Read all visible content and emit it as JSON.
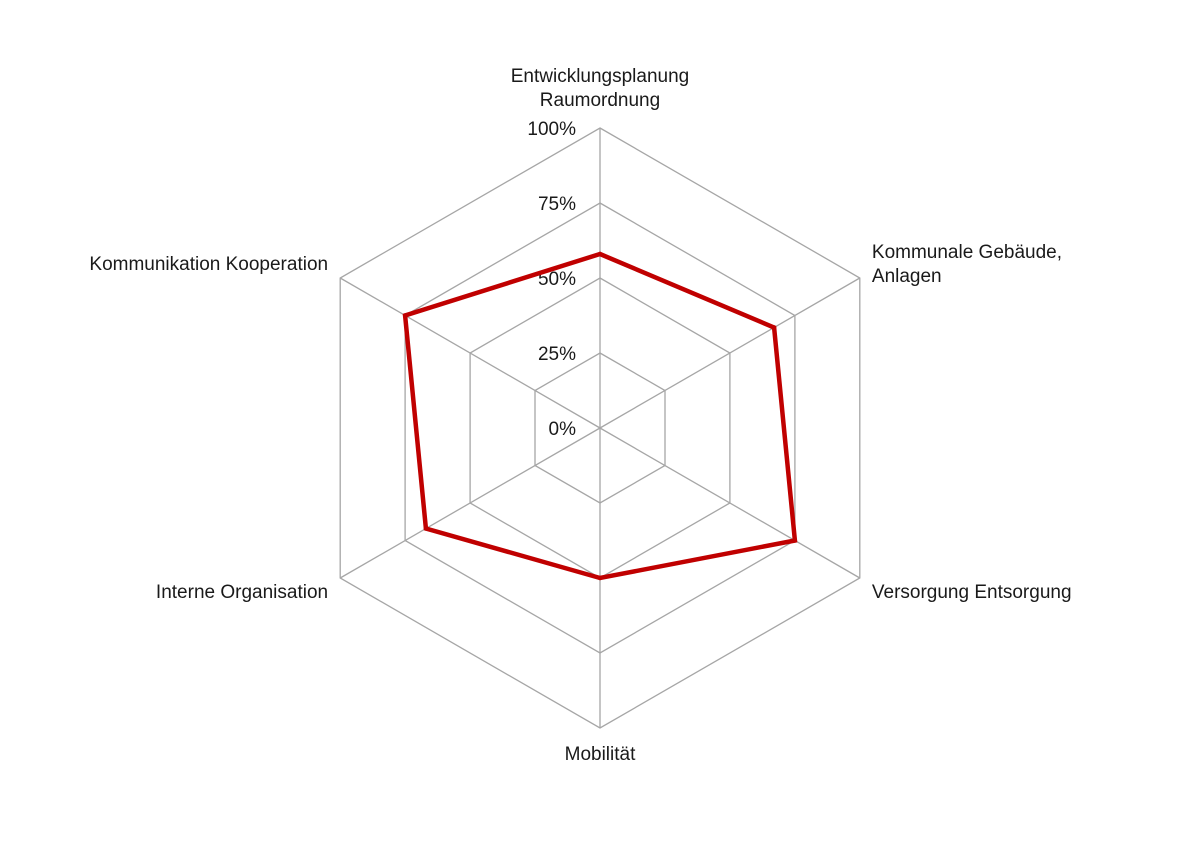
{
  "chart_data": {
    "type": "radar",
    "title": "",
    "categories": [
      [
        "Entwicklungsplanung",
        "Raumordnung"
      ],
      [
        "Kommunale Gebäude,",
        "Anlagen"
      ],
      [
        "Versorgung Entsorgung"
      ],
      [
        "Mobilität"
      ],
      [
        "Interne Organisation"
      ],
      [
        "Kommunikation Kooperation"
      ]
    ],
    "ticks": [
      "0%",
      "25%",
      "50%",
      "75%",
      "100%"
    ],
    "range": [
      0,
      100
    ],
    "grid": true,
    "legend": "none",
    "series": [
      {
        "color": "#c00000",
        "values": [
          58,
          67,
          75,
          50,
          67,
          75
        ]
      }
    ]
  }
}
